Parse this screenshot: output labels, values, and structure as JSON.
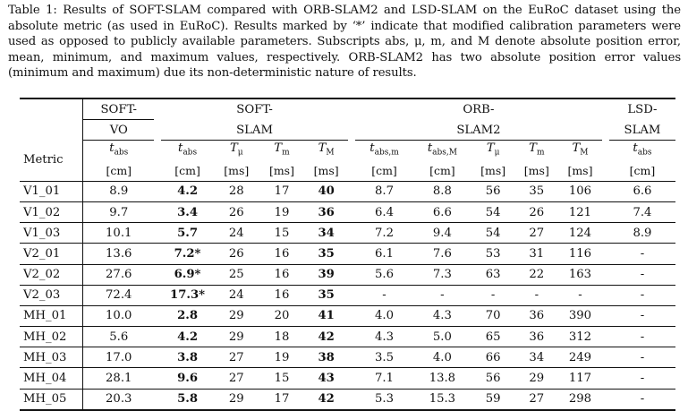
{
  "caption": "Table 1: Results of SOFT-SLAM compared with ORB-SLAM2 and LSD-SLAM on the EuRoC dataset using the absolute metric (as used in EuRoC). Results marked by ‘*’ indicate that modified calibration parameters were used as opposed to publicly available parameters. Subscripts abs, μ, m, and M denote absolute position error, mean, minimum, and maximum values, respectively. ORB-SLAM2 has two absolute position error values (minimum and maximum) due its non-deterministic nature of results.",
  "groups": {
    "soft_vo": [
      "SOFT-",
      "VO"
    ],
    "soft_slam": [
      "SOFT-",
      "SLAM"
    ],
    "orb_slam2": [
      "ORB-",
      "SLAM2"
    ],
    "lsd_slam": [
      "LSD-",
      "SLAM"
    ]
  },
  "columns": {
    "metric": "Metric",
    "vo_tabs": [
      "t",
      "abs",
      "[cm]"
    ],
    "ss_tabs": [
      "t",
      "abs",
      "[cm]"
    ],
    "ss_tmu": [
      "T",
      "μ",
      "[ms]"
    ],
    "ss_tm": [
      "T",
      "m",
      "[ms]"
    ],
    "ss_tM": [
      "T",
      "M",
      "[ms]"
    ],
    "orb_tabsm": [
      "t",
      "abs,m",
      "[cm]"
    ],
    "orb_tabsM": [
      "t",
      "abs,M",
      "[cm]"
    ],
    "orb_tmu": [
      "T",
      "μ",
      "[ms]"
    ],
    "orb_tm": [
      "T",
      "m",
      "[ms]"
    ],
    "orb_tM": [
      "T",
      "M",
      "[ms]"
    ],
    "lsd_tabs": [
      "t",
      "abs",
      "[cm]"
    ]
  },
  "rows": [
    [
      "V1_01",
      "8.9",
      "4.2",
      "28",
      "17",
      "40",
      "8.7",
      "8.8",
      "56",
      "35",
      "106",
      "6.6"
    ],
    [
      "V1_02",
      "9.7",
      "3.4",
      "26",
      "19",
      "36",
      "6.4",
      "6.6",
      "54",
      "26",
      "121",
      "7.4"
    ],
    [
      "V1_03",
      "10.1",
      "5.7",
      "24",
      "15",
      "34",
      "7.2",
      "9.4",
      "54",
      "27",
      "124",
      "8.9"
    ],
    [
      "V2_01",
      "13.6",
      "7.2*",
      "26",
      "16",
      "35",
      "6.1",
      "7.6",
      "53",
      "31",
      "116",
      "-"
    ],
    [
      "V2_02",
      "27.6",
      "6.9*",
      "25",
      "16",
      "39",
      "5.6",
      "7.3",
      "63",
      "22",
      "163",
      "-"
    ],
    [
      "V2_03",
      "72.4",
      "17.3*",
      "24",
      "16",
      "35",
      "-",
      "-",
      "-",
      "-",
      "-",
      "-"
    ],
    [
      "MH_01",
      "10.0",
      "2.8",
      "29",
      "20",
      "41",
      "4.0",
      "4.3",
      "70",
      "36",
      "390",
      "-"
    ],
    [
      "MH_02",
      "5.6",
      "4.2",
      "29",
      "18",
      "42",
      "4.3",
      "5.0",
      "65",
      "36",
      "312",
      "-"
    ],
    [
      "MH_03",
      "17.0",
      "3.8",
      "27",
      "19",
      "38",
      "3.5",
      "4.0",
      "66",
      "34",
      "249",
      "-"
    ],
    [
      "MH_04",
      "28.1",
      "9.6",
      "27",
      "15",
      "43",
      "7.1",
      "13.8",
      "56",
      "29",
      "117",
      "-"
    ],
    [
      "MH_05",
      "20.3",
      "5.8",
      "29",
      "17",
      "42",
      "5.3",
      "15.3",
      "59",
      "27",
      "298",
      "-"
    ]
  ]
}
